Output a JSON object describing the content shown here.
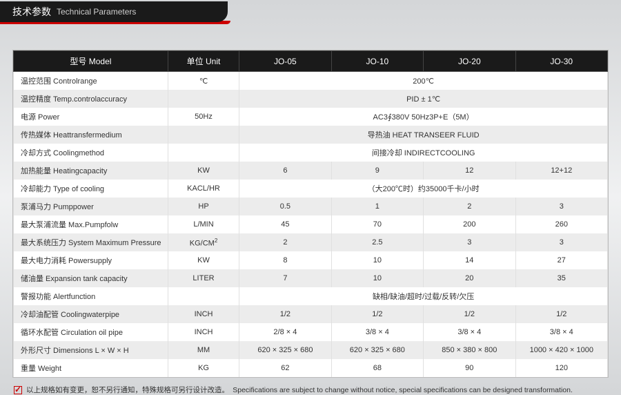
{
  "header": {
    "title_cn": "技术参数",
    "title_en": "Technical Parameters"
  },
  "table": {
    "head": {
      "model": "型号 Model",
      "unit": "单位 Unit",
      "models": [
        "JO-05",
        "JO-10",
        "JO-20",
        "JO-30"
      ]
    },
    "rows": [
      {
        "label": "温控范围 Controlrange",
        "unit": "℃",
        "span": "200℃"
      },
      {
        "label": "温控精度 Temp.controlaccuracy",
        "unit": "",
        "span": "PID ± 1℃"
      },
      {
        "label": "电源 Power",
        "unit": "50Hz",
        "span": "AC3∮380V 50Hz3P+E（5M）"
      },
      {
        "label": "传热媒体 Heattransfermedium",
        "unit": "",
        "span": "导热油 HEAT TRANSEER FLUID"
      },
      {
        "label": "冷却方式 Coolingmethod",
        "unit": "",
        "span": "间接冷却 INDIRECTCOOLING"
      },
      {
        "label": "加热能量 Heatingcapacity",
        "unit": "KW",
        "vals": [
          "6",
          "9",
          "12",
          "12+12"
        ]
      },
      {
        "label": "冷却能力 Type of cooling",
        "unit": "KACL/HR",
        "span": "（大200℃时）约35000千卡/小时"
      },
      {
        "label": "泵浦马力 Pumppower",
        "unit": "HP",
        "vals": [
          "0.5",
          "1",
          "2",
          "3"
        ]
      },
      {
        "label": "最大泵浦流量 Max.Pumpfolw",
        "unit": "L/MIN",
        "vals": [
          "45",
          "70",
          "200",
          "260"
        ]
      },
      {
        "label": "最大系统压力 System Maximum Pressure",
        "unit_html": "KG/CM<sup>2</sup>",
        "vals": [
          "2",
          "2.5",
          "3",
          "3"
        ]
      },
      {
        "label": "最大电力消耗 Powersupply",
        "unit": "KW",
        "vals": [
          "8",
          "10",
          "14",
          "27"
        ]
      },
      {
        "label": "储油量 Expansion tank capacity",
        "unit": "LITER",
        "vals": [
          "7",
          "10",
          "20",
          "35"
        ]
      },
      {
        "label": "警报功能 Alertfunction",
        "unit": "",
        "span": "缺相/缺油/超时/过载/反转/欠压"
      },
      {
        "label": "冷却油配管 Coolingwaterpipe",
        "unit": "INCH",
        "vals": [
          "1/2",
          "1/2",
          "1/2",
          "1/2"
        ]
      },
      {
        "label": "循环水配管 Circulation oil pipe",
        "unit": "INCH",
        "vals": [
          "2/8 × 4",
          "3/8 × 4",
          "3/8 × 4",
          "3/8 × 4"
        ]
      },
      {
        "label": "外形尺寸 Dimensions L × W × H",
        "unit": "MM",
        "vals": [
          "620 × 325 × 680",
          "620 × 325 × 680",
          "850 × 380 × 800",
          "1000 × 420 × 1000"
        ]
      },
      {
        "label": "重量 Weight",
        "unit": "KG",
        "vals": [
          "62",
          "68",
          "90",
          "120"
        ]
      }
    ]
  },
  "footnote": "以上规格如有变更，恕不另行通知，特殊规格可另行设计改造。　Specifications are subject to change without notice, special specifications can be designed transformation.",
  "style": {
    "header_bg": "#1a1a1a",
    "accent_red": "#cc0000",
    "row_alt_bg": "#ececec",
    "text_color": "#333333",
    "border_color": "#e0e0e0",
    "font_size_body": 11,
    "font_size_header": 14
  }
}
